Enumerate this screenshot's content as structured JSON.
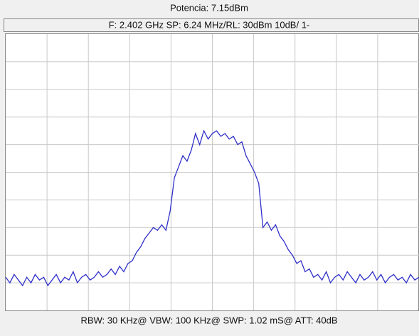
{
  "chart_data": {
    "type": "line",
    "title": "Potencia: 7.15dBm",
    "subtitle": "F: 2.402 GHz SP: 6.24 MHz/RL: 30dBm 10dB/ 1-",
    "caption": "RBW: 30 KHz@ VBW: 100 KHz@ SWP: 1.02 mS@ ATT: 40dB",
    "color": "#3030c8",
    "ylim": [
      -70,
      30
    ],
    "grid": true,
    "values": [
      -58,
      -60,
      -57,
      -59,
      -61,
      -58,
      -60,
      -57,
      -59,
      -58,
      -61,
      -59,
      -57,
      -60,
      -58,
      -59,
      -56,
      -60,
      -58,
      -57,
      -59,
      -58,
      -56,
      -58,
      -57,
      -55,
      -57,
      -54,
      -56,
      -53,
      -52,
      -49,
      -47,
      -44,
      -42,
      -40,
      -41,
      -39,
      -41,
      -34,
      -22,
      -18,
      -14,
      -16,
      -12,
      -6,
      -10,
      -5,
      -8,
      -6,
      -5,
      -7,
      -6,
      -8,
      -7,
      -10,
      -9,
      -14,
      -17,
      -20,
      -24,
      -40,
      -38,
      -41,
      -39,
      -43,
      -45,
      -48,
      -50,
      -53,
      -52,
      -56,
      -55,
      -58,
      -57,
      -59,
      -56,
      -60,
      -58,
      -57,
      -59,
      -56,
      -58,
      -60,
      -57,
      -59,
      -58,
      -56,
      -59,
      -57,
      -60,
      -58,
      -57,
      -59,
      -58,
      -60,
      -57,
      -59,
      -58
    ]
  }
}
